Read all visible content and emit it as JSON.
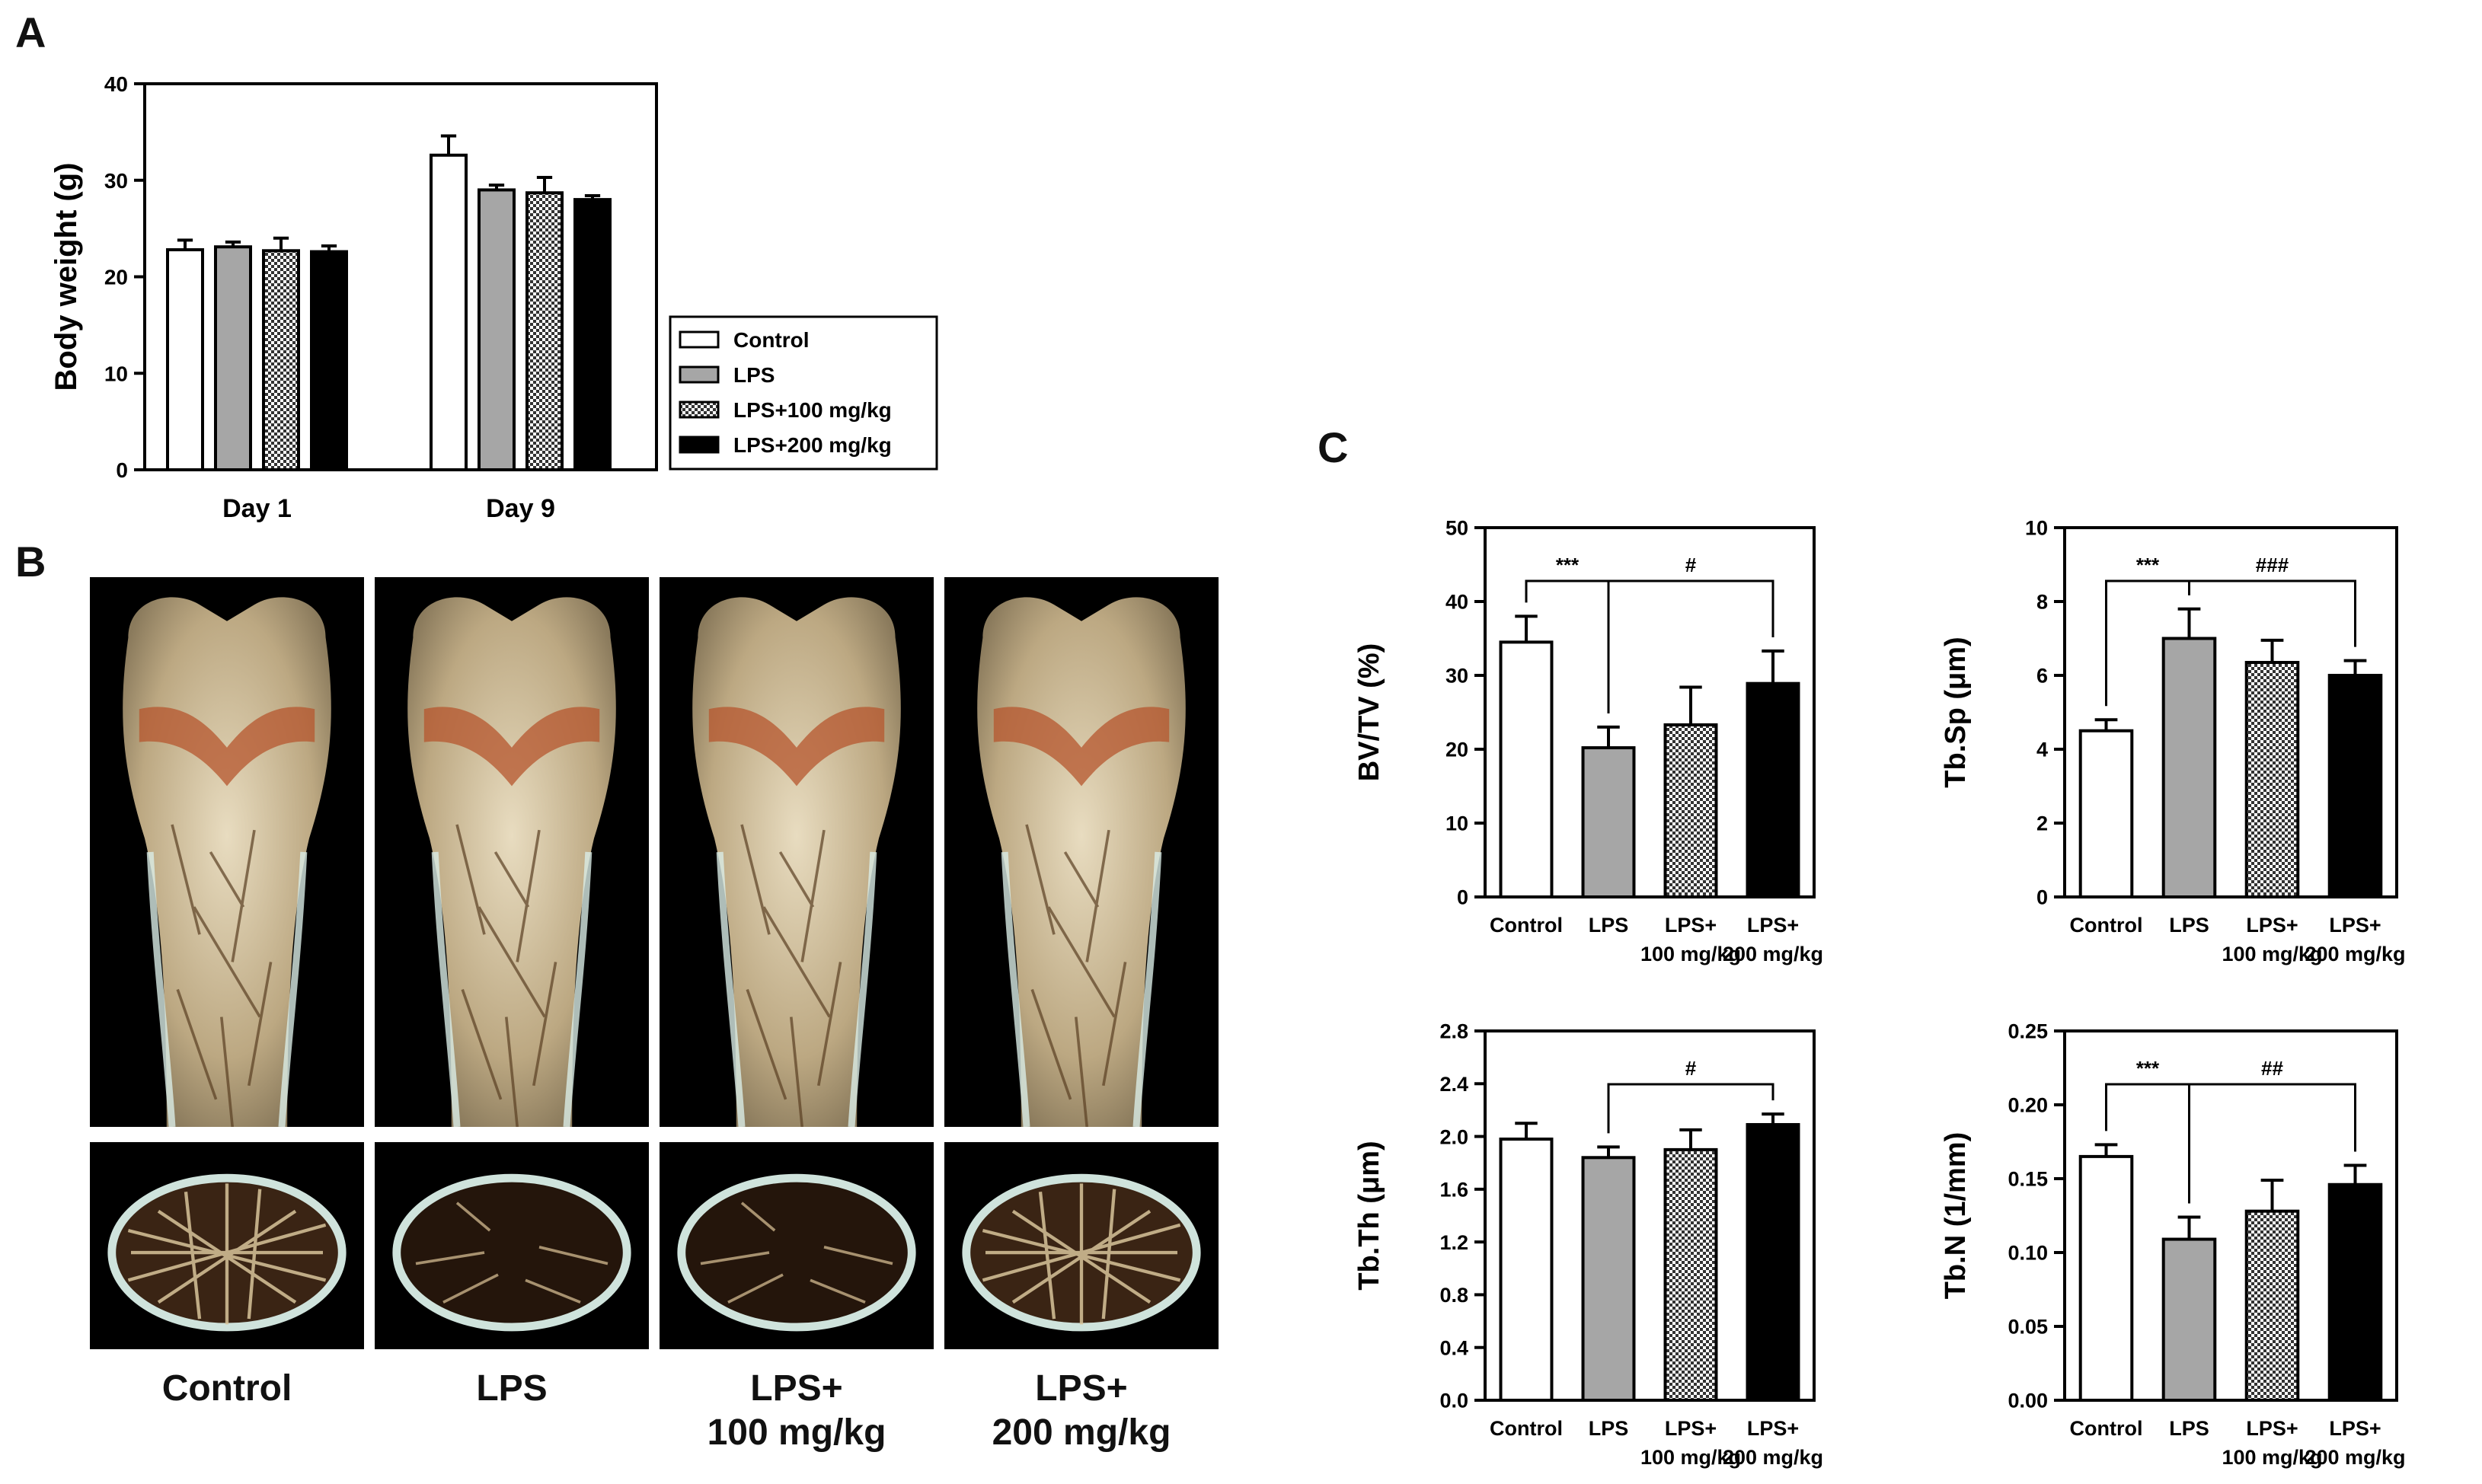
{
  "panels": {
    "a": "A",
    "b": "B",
    "c": "C"
  },
  "colors": {
    "control": "#ffffff",
    "lps": "#a6a6a6",
    "dose100": "checker",
    "dose200": "#000000"
  },
  "legend": {
    "placement": "right",
    "items": [
      "Control",
      "LPS",
      "LPS+100 mg/kg",
      "LPS+200 mg/kg"
    ]
  },
  "micro_ct": {
    "columns": [
      "Control",
      "LPS",
      "LPS+\n100 mg/kg",
      "LPS+\n200 mg/kg"
    ],
    "views": [
      "longitudinal femur 3D reconstruction",
      "transverse trabecular section"
    ]
  },
  "chart_data": [
    {
      "id": "A",
      "type": "bar",
      "categories": [
        "Day 1",
        "Day 9"
      ],
      "series": [
        {
          "name": "Control",
          "values": [
            22.8,
            32.6
          ],
          "errors": [
            1.0,
            2.0
          ]
        },
        {
          "name": "LPS",
          "values": [
            23.1,
            29.0
          ],
          "errors": [
            0.5,
            0.5
          ]
        },
        {
          "name": "LPS+100 mg/kg",
          "values": [
            22.7,
            28.7
          ],
          "errors": [
            1.3,
            1.6
          ]
        },
        {
          "name": "LPS+200 mg/kg",
          "values": [
            22.6,
            28.0
          ],
          "errors": [
            0.6,
            0.4
          ]
        }
      ],
      "xlabel": "",
      "ylabel": "Body weight (g)",
      "ylim": [
        0,
        40
      ],
      "yticks": [
        "0",
        "10",
        "20",
        "30",
        "40"
      ],
      "grid": false
    },
    {
      "id": "C1",
      "type": "bar",
      "categories": [
        "Control",
        "LPS",
        "LPS+\n100 mg/kg",
        "LPS+\n200 mg/kg"
      ],
      "values": [
        34.5,
        20.2,
        23.3,
        28.9
      ],
      "errors": [
        3.5,
        2.8,
        5.1,
        4.4
      ],
      "ylabel": "BV/TV (%)",
      "ylim": [
        0,
        50
      ],
      "yticks": [
        "0",
        "10",
        "20",
        "30",
        "40",
        "50"
      ],
      "annotations": [
        {
          "from": 0,
          "to": 1,
          "label": "***"
        },
        {
          "from": 1,
          "to": 3,
          "label": "#"
        }
      ]
    },
    {
      "id": "C2",
      "type": "bar",
      "categories": [
        "Control",
        "LPS",
        "LPS+\n100 mg/kg",
        "LPS+\n200 mg/kg"
      ],
      "values": [
        4.5,
        7.0,
        6.35,
        6.0
      ],
      "errors": [
        0.3,
        0.8,
        0.6,
        0.4
      ],
      "ylabel": "Tb.Sp  (μm)",
      "ylim": [
        0,
        10
      ],
      "yticks": [
        "0",
        "2",
        "4",
        "6",
        "8",
        "10"
      ],
      "annotations": [
        {
          "from": 0,
          "to": 1,
          "label": "***"
        },
        {
          "from": 1,
          "to": 3,
          "label": "###"
        }
      ]
    },
    {
      "id": "C3",
      "type": "bar",
      "categories": [
        "Control",
        "LPS",
        "LPS+\n100 mg/kg",
        "LPS+\n200 mg/kg"
      ],
      "values": [
        1.98,
        1.84,
        1.9,
        2.09
      ],
      "errors": [
        0.12,
        0.08,
        0.15,
        0.08
      ],
      "ylabel": "Tb.Th (μm)",
      "ylim": [
        0,
        2.8
      ],
      "yticks": [
        "0.0",
        "0.4",
        "0.8",
        "1.2",
        "1.6",
        "2.0",
        "2.4",
        "2.8"
      ],
      "annotations": [
        {
          "from": 1,
          "to": 3,
          "label": "#"
        }
      ]
    },
    {
      "id": "C4",
      "type": "bar",
      "categories": [
        "Control",
        "LPS",
        "LPS+\n100 mg/kg",
        "LPS+\n200 mg/kg"
      ],
      "values": [
        0.165,
        0.109,
        0.128,
        0.146
      ],
      "errors": [
        0.008,
        0.015,
        0.021,
        0.013
      ],
      "ylabel": "Tb.N (1/mm)",
      "ylim": [
        0,
        0.25
      ],
      "yticks": [
        "0.00",
        "0.05",
        "0.10",
        "0.15",
        "0.20",
        "0.25"
      ],
      "annotations": [
        {
          "from": 0,
          "to": 1,
          "label": "***"
        },
        {
          "from": 1,
          "to": 3,
          "label": "##"
        }
      ]
    }
  ]
}
